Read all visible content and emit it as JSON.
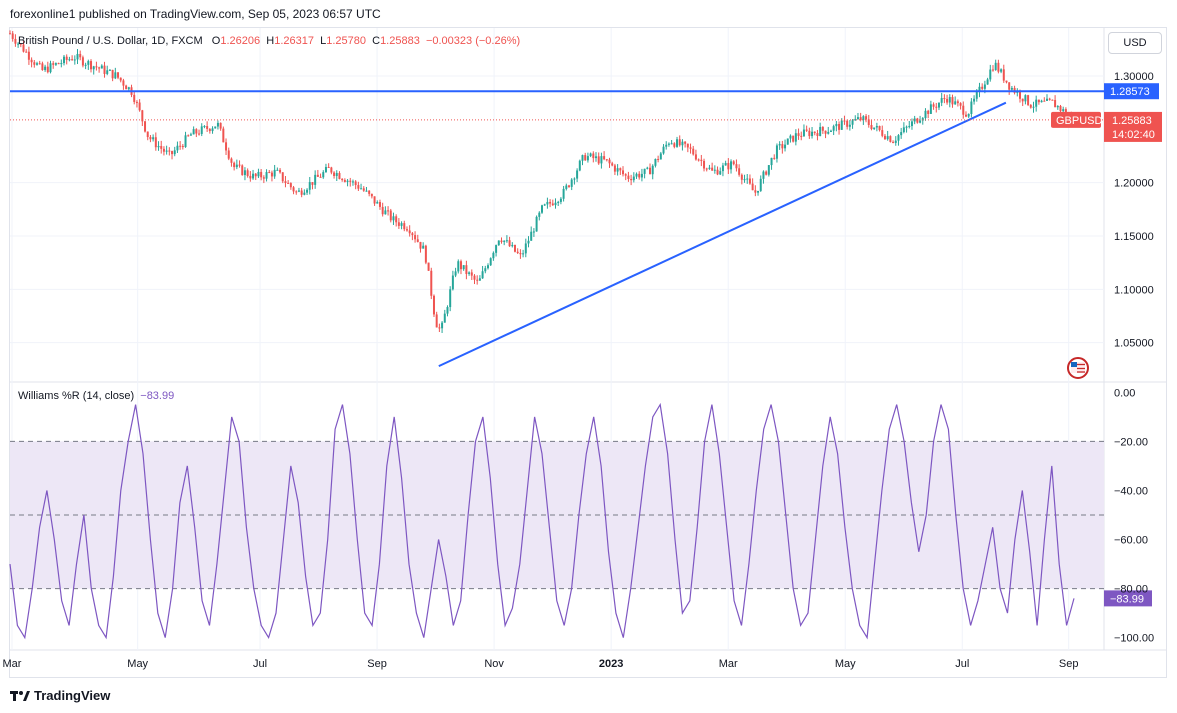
{
  "header": {
    "published": "forexonline1 published on TradingView.com, Sep 05, 2023 06:57 UTC"
  },
  "legend": {
    "symbol": "British Pound / U.S. Dollar, 1D, FXCM",
    "open_label": "O",
    "open": "1.26206",
    "high_label": "H",
    "high": "1.26317",
    "low_label": "L",
    "low": "1.25780",
    "close_label": "C",
    "close": "1.25883",
    "change": "−0.00323 (−0.26%)"
  },
  "currency_button": "USD",
  "indicator": {
    "label": "Williams %R (14, close)",
    "value": "−83.99"
  },
  "footer": {
    "brand": "TradingView"
  },
  "colors": {
    "up": "#26a69a",
    "down": "#ef5350",
    "trendline": "#2962ff",
    "wr_line": "#7e57c2",
    "wr_band": "#ede7f6"
  },
  "chart_data": [
    {
      "type": "candlestick",
      "title": "British Pound / U.S. Dollar, 1D, FXCM",
      "x_ticks": [
        "Mar",
        "May",
        "Jul",
        "Sep",
        "Nov",
        "2023",
        "Mar",
        "May",
        "Jul",
        "Sep"
      ],
      "y_ticks": [
        "1.30000",
        "1.20000",
        "1.15000",
        "1.10000",
        "1.05000"
      ],
      "ylim": [
        1.015,
        1.345
      ],
      "price_series": [
        {
          "t": 0.0,
          "p": 1.34
        },
        {
          "t": 0.03,
          "p": 1.305
        },
        {
          "t": 0.06,
          "p": 1.318
        },
        {
          "t": 0.1,
          "p": 1.3
        },
        {
          "t": 0.115,
          "p": 1.285
        },
        {
          "t": 0.13,
          "p": 1.243
        },
        {
          "t": 0.15,
          "p": 1.225
        },
        {
          "t": 0.17,
          "p": 1.245
        },
        {
          "t": 0.195,
          "p": 1.255
        },
        {
          "t": 0.21,
          "p": 1.215
        },
        {
          "t": 0.23,
          "p": 1.205
        },
        {
          "t": 0.25,
          "p": 1.21
        },
        {
          "t": 0.27,
          "p": 1.19
        },
        {
          "t": 0.3,
          "p": 1.213
        },
        {
          "t": 0.33,
          "p": 1.195
        },
        {
          "t": 0.36,
          "p": 1.165
        },
        {
          "t": 0.375,
          "p": 1.158
        },
        {
          "t": 0.39,
          "p": 1.135
        },
        {
          "t": 0.4,
          "p": 1.07
        },
        {
          "t": 0.405,
          "p": 1.06
        },
        {
          "t": 0.42,
          "p": 1.125
        },
        {
          "t": 0.44,
          "p": 1.105
        },
        {
          "t": 0.46,
          "p": 1.15
        },
        {
          "t": 0.48,
          "p": 1.13
        },
        {
          "t": 0.5,
          "p": 1.175
        },
        {
          "t": 0.52,
          "p": 1.19
        },
        {
          "t": 0.54,
          "p": 1.225
        },
        {
          "t": 0.56,
          "p": 1.22
        },
        {
          "t": 0.58,
          "p": 1.205
        },
        {
          "t": 0.6,
          "p": 1.21
        },
        {
          "t": 0.62,
          "p": 1.24
        },
        {
          "t": 0.64,
          "p": 1.23
        },
        {
          "t": 0.66,
          "p": 1.21
        },
        {
          "t": 0.68,
          "p": 1.218
        },
        {
          "t": 0.7,
          "p": 1.19
        },
        {
          "t": 0.72,
          "p": 1.23
        },
        {
          "t": 0.74,
          "p": 1.245
        },
        {
          "t": 0.77,
          "p": 1.25
        },
        {
          "t": 0.8,
          "p": 1.26
        },
        {
          "t": 0.83,
          "p": 1.24
        },
        {
          "t": 0.855,
          "p": 1.262
        },
        {
          "t": 0.88,
          "p": 1.28
        },
        {
          "t": 0.9,
          "p": 1.265
        },
        {
          "t": 0.925,
          "p": 1.312
        },
        {
          "t": 0.94,
          "p": 1.29
        },
        {
          "t": 0.96,
          "p": 1.273
        },
        {
          "t": 0.98,
          "p": 1.275
        },
        {
          "t": 1.0,
          "p": 1.259
        }
      ],
      "horizontal_line": {
        "value": 1.28573,
        "label": "1.28573"
      },
      "trendline": {
        "from": {
          "t": 0.403,
          "p": 1.028
        },
        "to": {
          "t": 0.936,
          "p": 1.275
        }
      },
      "last_price": {
        "value": 1.25883,
        "label": "1.25883",
        "symbol": "GBPUSD",
        "countdown": "14:02:40"
      }
    },
    {
      "type": "line",
      "title": "Williams %R (14, close)",
      "y_ticks": [
        "0.00",
        "−20.00",
        "−40.00",
        "−60.00",
        "−80.00",
        "−100.00"
      ],
      "ylim": [
        -103,
        3
      ],
      "band": [
        -80,
        -20
      ],
      "mid_level": -50,
      "values": [
        -70,
        -95,
        -100,
        -80,
        -55,
        -40,
        -60,
        -85,
        -95,
        -70,
        -50,
        -80,
        -95,
        -100,
        -75,
        -40,
        -20,
        -5,
        -25,
        -60,
        -90,
        -100,
        -80,
        -45,
        -30,
        -55,
        -85,
        -95,
        -70,
        -40,
        -10,
        -20,
        -55,
        -80,
        -95,
        -100,
        -90,
        -60,
        -30,
        -45,
        -75,
        -95,
        -90,
        -60,
        -15,
        -5,
        -25,
        -60,
        -90,
        -95,
        -70,
        -30,
        -10,
        -35,
        -70,
        -90,
        -100,
        -80,
        -60,
        -75,
        -95,
        -85,
        -50,
        -20,
        -10,
        -35,
        -70,
        -95,
        -88,
        -70,
        -40,
        -10,
        -25,
        -55,
        -85,
        -95,
        -80,
        -50,
        -25,
        -10,
        -30,
        -65,
        -90,
        -100,
        -80,
        -55,
        -30,
        -10,
        -5,
        -25,
        -60,
        -90,
        -85,
        -55,
        -20,
        -5,
        -25,
        -55,
        -85,
        -95,
        -70,
        -40,
        -15,
        -5,
        -20,
        -50,
        -80,
        -95,
        -90,
        -60,
        -30,
        -10,
        -25,
        -55,
        -80,
        -95,
        -100,
        -70,
        -40,
        -15,
        -5,
        -20,
        -45,
        -65,
        -50,
        -20,
        -5,
        -15,
        -50,
        -80,
        -95,
        -85,
        -70,
        -55,
        -80,
        -90,
        -60,
        -40,
        -65,
        -95,
        -60,
        -30,
        -70,
        -95,
        -84
      ]
    }
  ],
  "wr_axis_label": "−83.99"
}
